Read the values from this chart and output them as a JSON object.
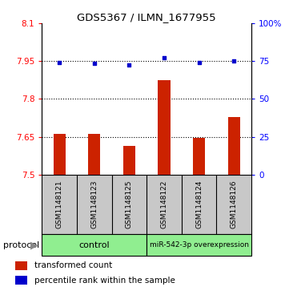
{
  "title": "GDS5367 / ILMN_1677955",
  "samples": [
    "GSM1148121",
    "GSM1148123",
    "GSM1148125",
    "GSM1148122",
    "GSM1148124",
    "GSM1148126"
  ],
  "transformed_counts": [
    7.66,
    7.66,
    7.615,
    7.875,
    7.647,
    7.728
  ],
  "percentile_ranks": [
    74.0,
    73.5,
    72.5,
    77.0,
    74.0,
    75.0
  ],
  "ylim_left": [
    7.5,
    8.1
  ],
  "ylim_right": [
    0,
    100
  ],
  "yticks_left": [
    7.5,
    7.65,
    7.8,
    7.95,
    8.1
  ],
  "ytick_labels_left": [
    "7.5",
    "7.65",
    "7.8",
    "7.95",
    "8.1"
  ],
  "yticks_right": [
    0,
    25,
    50,
    75,
    100
  ],
  "ytick_labels_right": [
    "0",
    "25",
    "50",
    "75",
    "100%"
  ],
  "hlines": [
    7.65,
    7.8,
    7.95
  ],
  "bar_color": "#cc2200",
  "dot_color": "#0000cc",
  "bar_bottom": 7.5,
  "control_label": "control",
  "mir_label": "miR-542-3p overexpression",
  "protocol_label": "protocol",
  "group_color": "#90ee90",
  "sample_bg_color": "#c8c8c8",
  "background_color": "#ffffff",
  "legend_red_label": "transformed count",
  "legend_blue_label": "percentile rank within the sample"
}
